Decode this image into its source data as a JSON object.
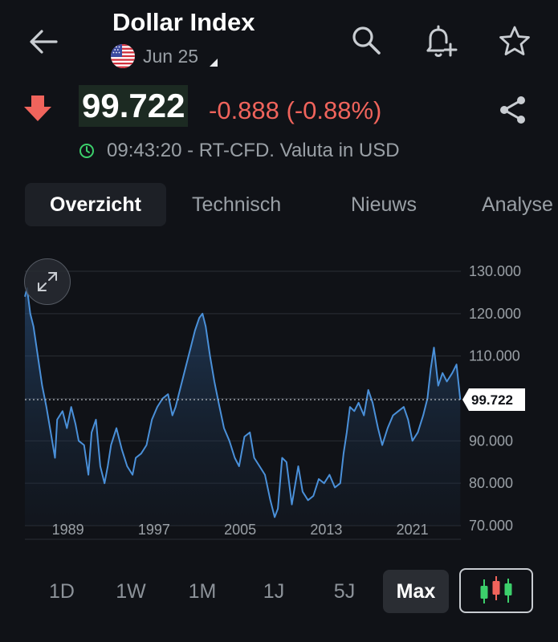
{
  "header": {
    "title": "Dollar Index",
    "subtitle": "Jun 25",
    "icons": [
      "back-arrow-icon",
      "us-flag-icon",
      "dropdown-icon",
      "search-icon",
      "add-alert-icon",
      "star-icon"
    ]
  },
  "quote": {
    "price": "99.722",
    "change": "-0.888 (-0.88%)",
    "direction": "down",
    "time_info": "09:43:20 - RT-CFD. Valuta in USD",
    "colors": {
      "down": "#f0645c",
      "status_dot": "#3ccf6b"
    }
  },
  "tabs": [
    {
      "label": "Overzicht",
      "active": true
    },
    {
      "label": "Technisch",
      "active": false
    },
    {
      "label": "Nieuws",
      "active": false
    },
    {
      "label": "Analyse",
      "active": false
    }
  ],
  "chart_data": {
    "type": "area",
    "x_ticks": [
      "1989",
      "1997",
      "2005",
      "2013",
      "2021"
    ],
    "y_ticks": [
      "130.000",
      "120.000",
      "110.000",
      "100.000",
      "90.000",
      "80.000",
      "70.000"
    ],
    "ylim": [
      70,
      130
    ],
    "xlim": [
      1985,
      2025.5
    ],
    "current_value": 99.722,
    "current_label": "99.722",
    "line_color": "#4a90d9",
    "x": [
      1985,
      1985.2,
      1985.5,
      1985.8,
      1986.2,
      1986.6,
      1987,
      1987.4,
      1987.8,
      1988,
      1988.5,
      1988.9,
      1989.3,
      1989.7,
      1990,
      1990.5,
      1990.9,
      1991.2,
      1991.6,
      1992,
      1992.4,
      1992.7,
      1993,
      1993.5,
      1994,
      1994.5,
      1995,
      1995.3,
      1995.8,
      1996.3,
      1996.8,
      1997.3,
      1997.8,
      1998.3,
      1998.7,
      1999,
      1999.5,
      2000,
      2000.4,
      2000.8,
      2001.2,
      2001.5,
      2001.8,
      2002.2,
      2002.6,
      2003,
      2003.5,
      2004,
      2004.5,
      2004.9,
      2005.4,
      2005.9,
      2006.3,
      2006.8,
      2007.3,
      2007.8,
      2008.2,
      2008.5,
      2008.9,
      2009.3,
      2009.8,
      2010.4,
      2010.8,
      2011.3,
      2011.8,
      2012.3,
      2012.8,
      2013.3,
      2013.8,
      2014.3,
      2014.6,
      2014.9,
      2015.2,
      2015.6,
      2016,
      2016.5,
      2016.9,
      2017.3,
      2017.8,
      2018.2,
      2018.7,
      2019.2,
      2019.7,
      2020.2,
      2020.6,
      2021,
      2021.5,
      2022,
      2022.4,
      2022.7,
      2023,
      2023.4,
      2023.8,
      2024.2,
      2024.7,
      2025.1,
      2025.45
    ],
    "y": [
      124,
      126,
      120,
      117,
      110,
      103,
      98,
      92,
      86,
      95,
      97,
      93,
      98,
      94,
      90,
      89,
      82,
      92,
      95,
      84,
      80,
      84,
      89,
      93,
      88,
      84,
      82,
      86,
      87,
      89,
      95,
      98,
      100,
      101,
      96,
      98,
      103,
      108,
      112,
      116,
      119,
      120,
      117,
      110,
      104,
      99,
      93,
      90,
      86,
      84,
      91,
      92,
      86,
      84,
      82,
      76,
      72,
      74,
      86,
      85,
      75,
      84,
      78,
      76,
      77,
      81,
      80,
      82,
      79,
      80,
      87,
      92,
      98,
      97,
      99,
      96,
      102,
      99,
      93,
      89,
      93,
      96,
      97,
      98,
      95,
      90,
      92,
      96,
      100,
      107,
      112,
      103,
      106,
      104,
      106,
      108,
      99.7
    ]
  },
  "ranges": [
    {
      "label": "1D",
      "active": false
    },
    {
      "label": "1W",
      "active": false
    },
    {
      "label": "1M",
      "active": false
    },
    {
      "label": "1J",
      "active": false
    },
    {
      "label": "5J",
      "active": false
    },
    {
      "label": "Max",
      "active": true
    }
  ],
  "candle_icon": "candlestick-chart-icon"
}
